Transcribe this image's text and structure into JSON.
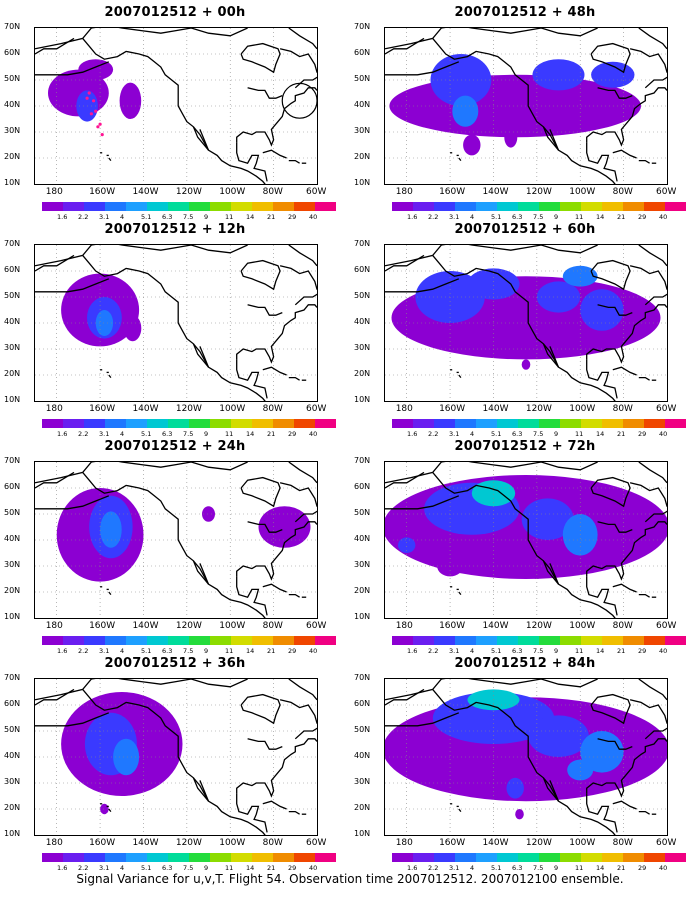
{
  "caption": "Signal Variance for u,v,T. Flight 54. Observation time 2007012512. 2007012100 ensemble.",
  "panels": [
    {
      "title": "2007012512 + 00h"
    },
    {
      "title": "2007012512 + 48h"
    },
    {
      "title": "2007012512 + 12h"
    },
    {
      "title": "2007012512 + 60h"
    },
    {
      "title": "2007012512 + 24h"
    },
    {
      "title": "2007012512 + 72h"
    },
    {
      "title": "2007012512 + 36h"
    },
    {
      "title": "2007012512 + 84h"
    }
  ],
  "lat_labels": [
    "70N",
    "60N",
    "50N",
    "40N",
    "30N",
    "20N",
    "10N"
  ],
  "lon_labels": [
    "180",
    "160W",
    "140W",
    "120W",
    "100W",
    "80W",
    "60W"
  ],
  "colorbar": {
    "labels": [
      "1.6",
      "2.2",
      "3.1",
      "4",
      "5.1",
      "6.3",
      "7.5",
      "9",
      "11",
      "14",
      "21",
      "29",
      "40"
    ],
    "colors": [
      "#8c00d2",
      "#6a1ef0",
      "#3a3aff",
      "#1f78ff",
      "#1ea0ff",
      "#00c8d2",
      "#00dc9a",
      "#24dc3c",
      "#8cdc00",
      "#d2dc00",
      "#f0be00",
      "#f08c00",
      "#f04600",
      "#f00082"
    ]
  },
  "map_extent": {
    "lon": [
      -190,
      -60
    ],
    "lat": [
      10,
      70
    ]
  }
}
